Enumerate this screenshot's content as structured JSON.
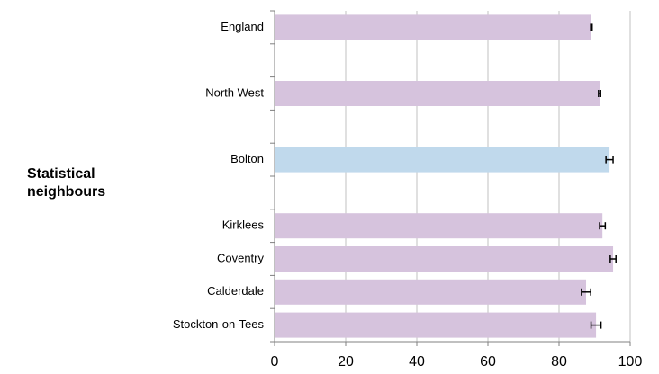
{
  "chart_data": {
    "type": "bar",
    "orientation": "horizontal",
    "annotation": "Statistical neighbours",
    "categories": [
      "England",
      null,
      "North West",
      null,
      "Bolton",
      null,
      "Kirklees",
      "Coventry",
      "Calderdale",
      "Stockton-on-Tees"
    ],
    "values": [
      89.1,
      null,
      91.4,
      null,
      94.2,
      null,
      92.2,
      95.2,
      87.6,
      90.4
    ],
    "errors": [
      0.2,
      null,
      0.3,
      null,
      1.0,
      null,
      0.8,
      0.8,
      1.3,
      1.4
    ],
    "colors": [
      "#d6c3dd",
      null,
      "#d6c3dd",
      null,
      "#c0d9ec",
      null,
      "#d6c3dd",
      "#d6c3dd",
      "#d6c3dd",
      "#d6c3dd"
    ],
    "xlim": [
      0,
      100
    ],
    "xticks": [
      0,
      20,
      40,
      60,
      80,
      100
    ],
    "grid": true
  }
}
